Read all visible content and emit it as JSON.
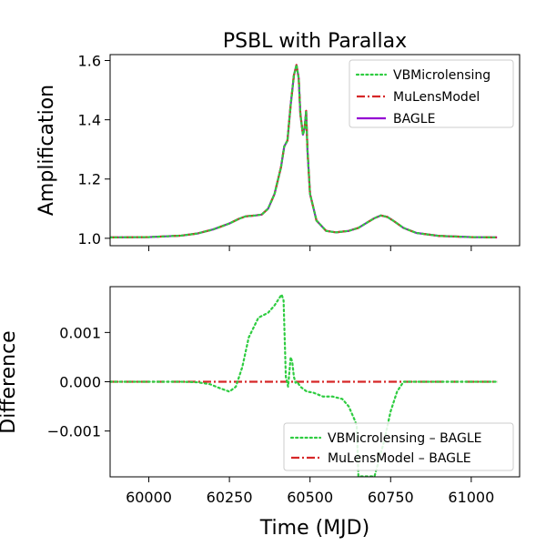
{
  "chart_data": [
    {
      "type": "line",
      "title": "PSBL with Parallax",
      "xlabel": "",
      "ylabel": "Amplification",
      "xlim": [
        59880,
        61150
      ],
      "ylim": [
        0.975,
        1.62
      ],
      "xticks": [
        60000,
        60250,
        60500,
        60750,
        61000
      ],
      "yticks": [
        1.0,
        1.2,
        1.4,
        1.6
      ],
      "ytick_labels": [
        "1.0",
        "1.2",
        "1.4",
        "1.6"
      ],
      "legend_position": "top-right",
      "grid": false,
      "series": [
        {
          "name": "VBMicrolensing",
          "style": "dotted",
          "color": "#2ecc40",
          "x": [
            59880,
            60000,
            60100,
            60150,
            60200,
            60250,
            60280,
            60300,
            60330,
            60350,
            60370,
            60390,
            60410,
            60420,
            60425,
            60430,
            60440,
            60450,
            60458,
            60465,
            60470,
            60478,
            60483,
            60488,
            60492,
            60500,
            60520,
            60550,
            60580,
            60620,
            60650,
            60680,
            60700,
            60720,
            60740,
            60760,
            60790,
            60830,
            60900,
            61000,
            61080
          ],
          "y": [
            1.003,
            1.004,
            1.009,
            1.016,
            1.03,
            1.05,
            1.066,
            1.074,
            1.077,
            1.08,
            1.1,
            1.15,
            1.24,
            1.31,
            1.32,
            1.33,
            1.45,
            1.55,
            1.585,
            1.54,
            1.42,
            1.35,
            1.37,
            1.43,
            1.3,
            1.15,
            1.06,
            1.025,
            1.02,
            1.025,
            1.035,
            1.055,
            1.068,
            1.077,
            1.072,
            1.058,
            1.035,
            1.018,
            1.008,
            1.004,
            1.003
          ]
        },
        {
          "name": "MuLensModel",
          "style": "dashdot",
          "color": "#d62728",
          "x": [
            59880,
            60000,
            60100,
            60150,
            60200,
            60250,
            60280,
            60300,
            60330,
            60350,
            60370,
            60390,
            60410,
            60420,
            60425,
            60430,
            60440,
            60450,
            60458,
            60465,
            60470,
            60478,
            60483,
            60488,
            60492,
            60500,
            60520,
            60550,
            60580,
            60620,
            60650,
            60680,
            60700,
            60720,
            60740,
            60760,
            60790,
            60830,
            60900,
            61000,
            61080
          ],
          "y": [
            1.003,
            1.004,
            1.009,
            1.016,
            1.03,
            1.05,
            1.066,
            1.074,
            1.077,
            1.08,
            1.1,
            1.15,
            1.24,
            1.31,
            1.32,
            1.33,
            1.45,
            1.55,
            1.585,
            1.54,
            1.42,
            1.35,
            1.37,
            1.43,
            1.3,
            1.15,
            1.06,
            1.025,
            1.02,
            1.025,
            1.035,
            1.055,
            1.068,
            1.077,
            1.072,
            1.058,
            1.035,
            1.018,
            1.008,
            1.004,
            1.003
          ]
        },
        {
          "name": "BAGLE",
          "style": "solid",
          "color": "#9400d3",
          "x": [
            59880,
            60000,
            60100,
            60150,
            60200,
            60250,
            60280,
            60300,
            60330,
            60350,
            60370,
            60390,
            60410,
            60420,
            60425,
            60430,
            60440,
            60450,
            60458,
            60465,
            60470,
            60478,
            60483,
            60488,
            60492,
            60500,
            60520,
            60550,
            60580,
            60620,
            60650,
            60680,
            60700,
            60720,
            60740,
            60760,
            60790,
            60830,
            60900,
            61000,
            61080
          ],
          "y": [
            1.003,
            1.004,
            1.009,
            1.016,
            1.03,
            1.05,
            1.066,
            1.074,
            1.077,
            1.08,
            1.1,
            1.15,
            1.24,
            1.31,
            1.32,
            1.33,
            1.45,
            1.55,
            1.585,
            1.54,
            1.42,
            1.35,
            1.37,
            1.43,
            1.3,
            1.15,
            1.06,
            1.025,
            1.02,
            1.025,
            1.035,
            1.055,
            1.068,
            1.077,
            1.072,
            1.058,
            1.035,
            1.018,
            1.008,
            1.004,
            1.003
          ]
        }
      ]
    },
    {
      "type": "line",
      "title": "",
      "xlabel": "Time (MJD)",
      "ylabel": "Difference",
      "xlim": [
        59880,
        61150
      ],
      "ylim": [
        -0.00193,
        0.00193
      ],
      "xticks": [
        60000,
        60250,
        60500,
        60750,
        61000
      ],
      "xtick_labels": [
        "60000",
        "60250",
        "60500",
        "60750",
        "61000"
      ],
      "yticks": [
        -0.001,
        0.0,
        0.001
      ],
      "ytick_labels": [
        "−0.001",
        "0.000",
        "0.001"
      ],
      "legend_position": "bottom-right",
      "grid": false,
      "series": [
        {
          "name": "VBMicrolensing – BAGLE",
          "style": "dotted",
          "color": "#2ecc40",
          "x": [
            59880,
            60000,
            60100,
            60150,
            60190,
            60220,
            60250,
            60270,
            60290,
            60310,
            60340,
            60370,
            60390,
            60405,
            60412,
            60418,
            60420,
            60425,
            60432,
            60440,
            60445,
            60450,
            60455,
            60460,
            60470,
            60490,
            60510,
            60540,
            60570,
            60600,
            60620,
            60640,
            60645,
            60650,
            60700,
            60730,
            60750,
            60770,
            60790,
            60850,
            60950,
            61050,
            61080
          ],
          "y": [
            0.0,
            0.0,
            0.0,
            -1e-05,
            -5e-05,
            -0.00013,
            -0.0002,
            -0.0001,
            0.0003,
            0.0009,
            0.0013,
            0.0014,
            0.00155,
            0.0017,
            0.00177,
            0.00165,
            0.0012,
            0.0001,
            -0.0001,
            0.0005,
            0.0004,
            0.0001,
            -2e-05,
            0.0,
            -0.0001,
            -0.0002,
            -0.00022,
            -0.0003,
            -0.0003,
            -0.00035,
            -0.0005,
            -0.0008,
            -0.0009,
            -0.00192,
            -0.00192,
            -0.0012,
            -0.0006,
            -0.0002,
            0.0,
            0.0,
            0.0,
            0.0,
            0.0
          ]
        },
        {
          "name": "MuLensModel – BAGLE",
          "style": "dashdot",
          "color": "#d62728",
          "x": [
            59880,
            61080
          ],
          "y": [
            0.0,
            0.0
          ]
        }
      ]
    }
  ]
}
